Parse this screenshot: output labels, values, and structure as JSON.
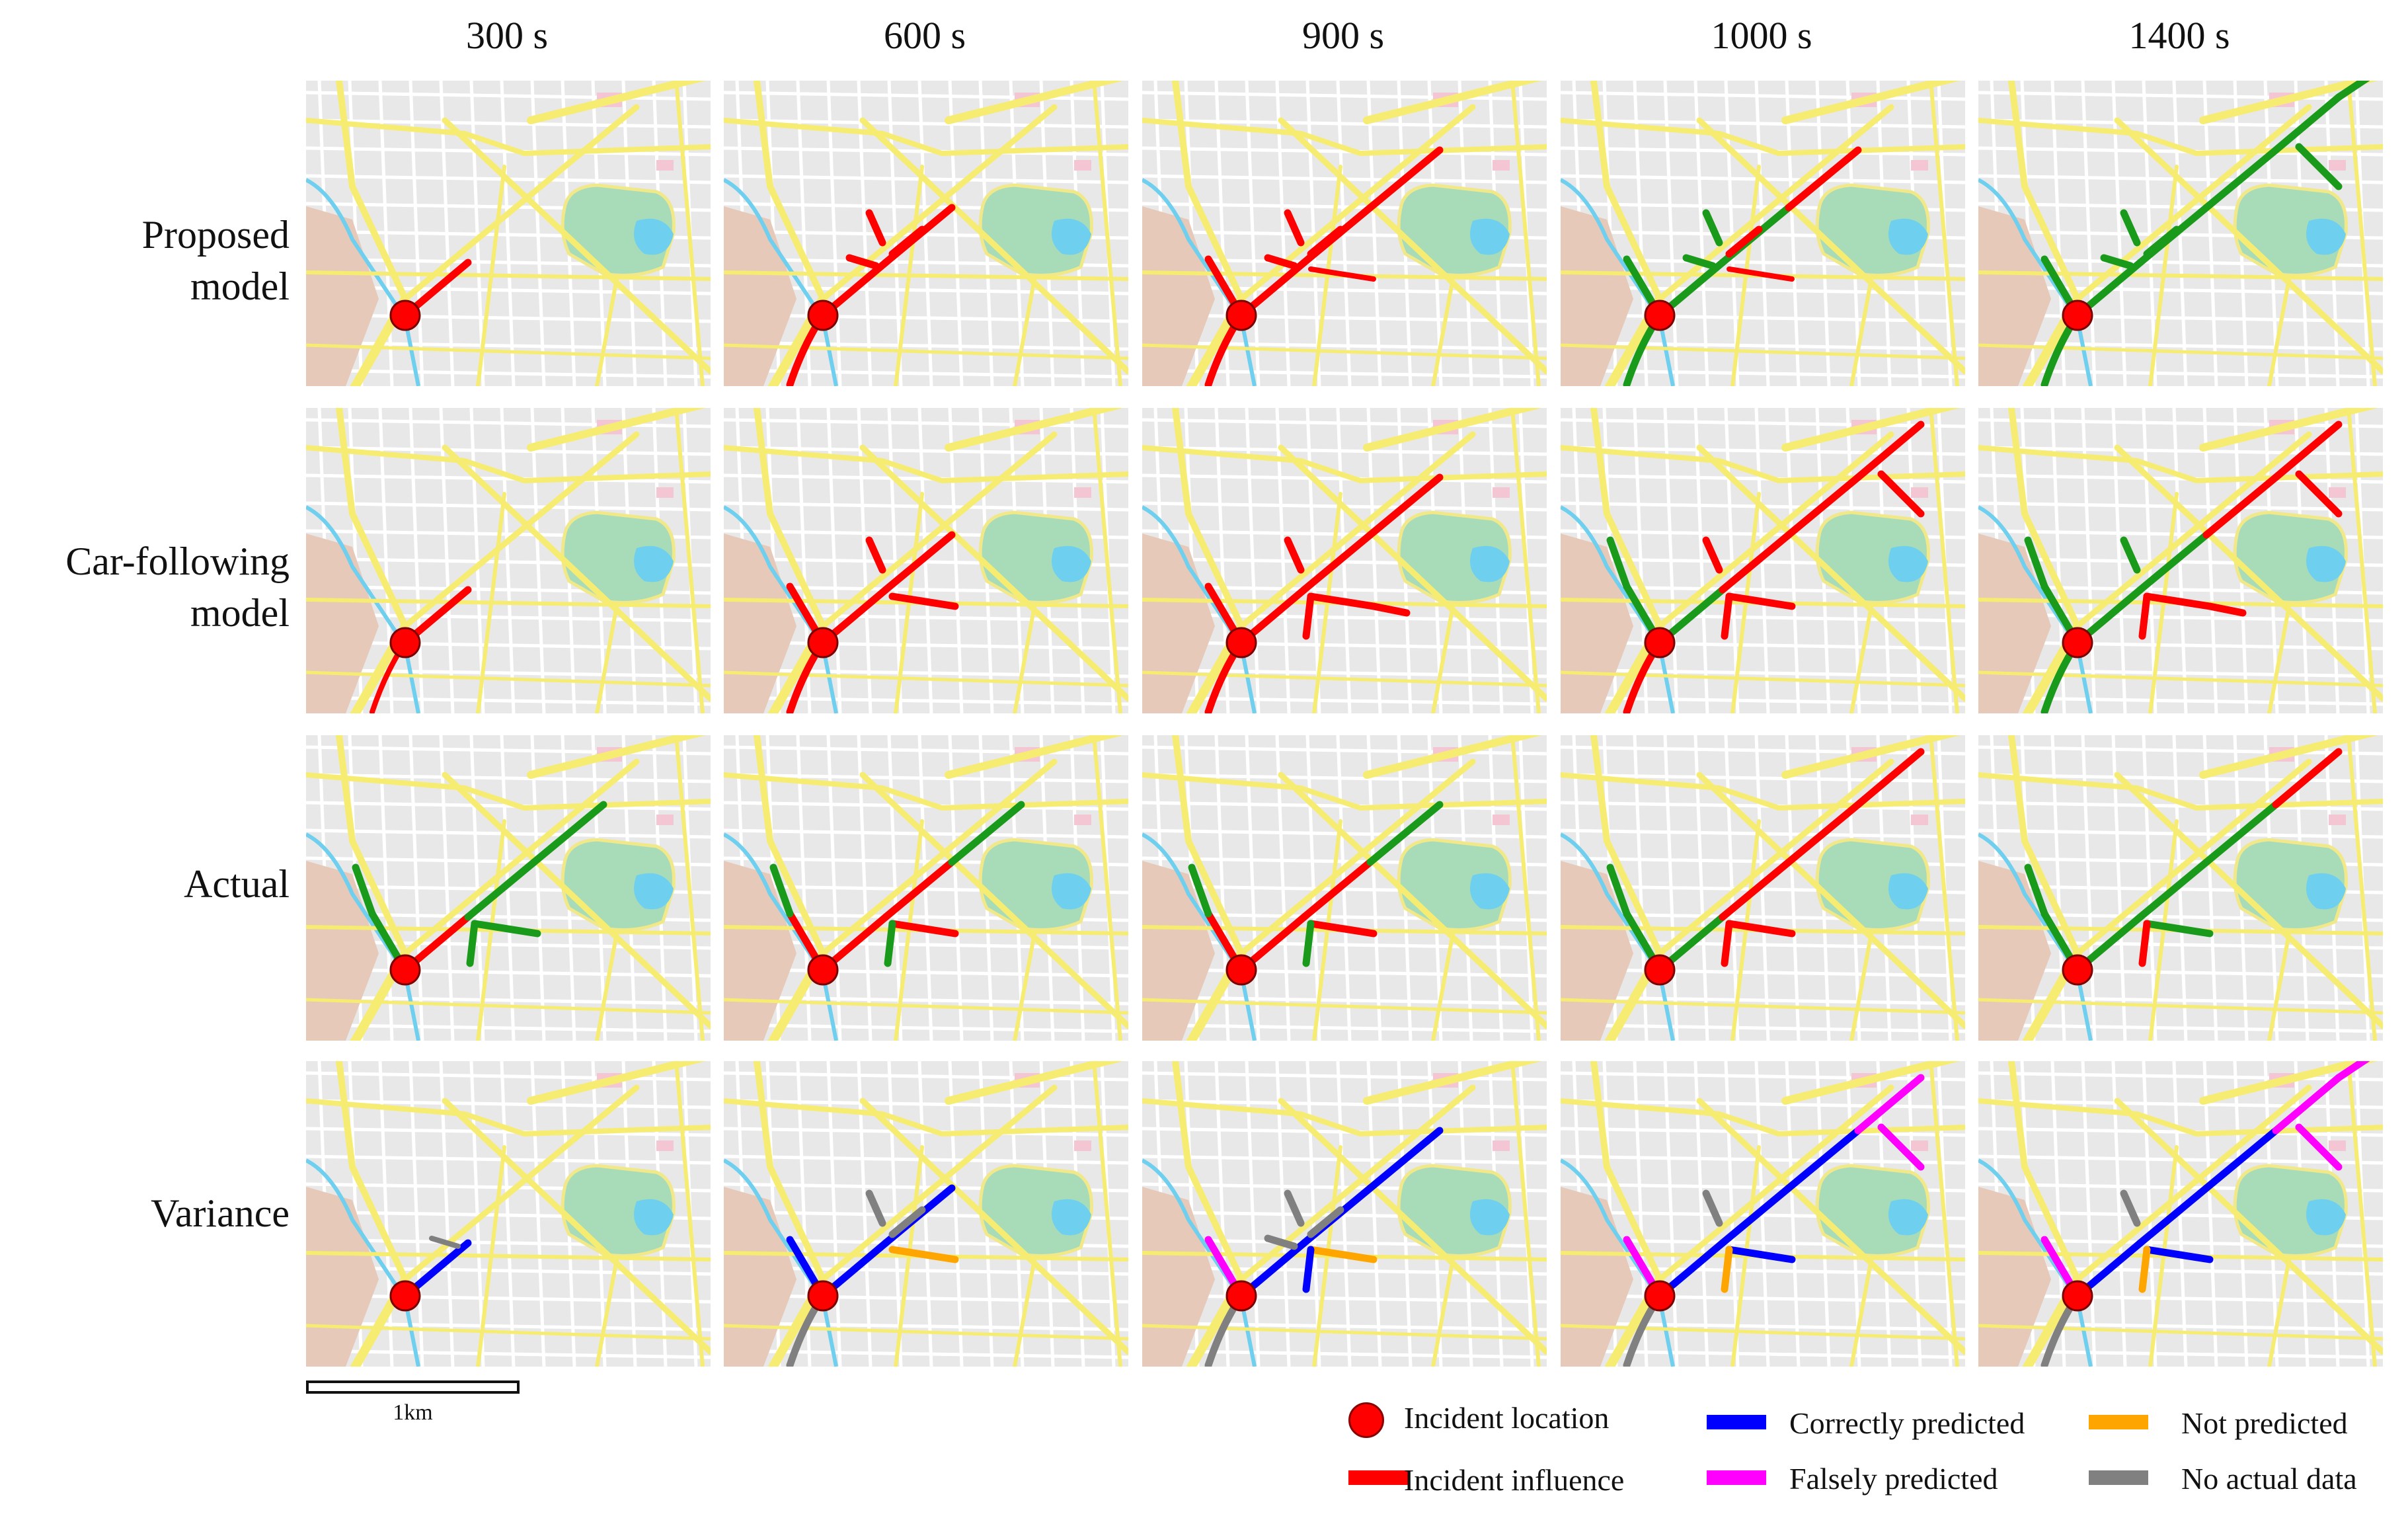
{
  "colors": {
    "incident_influence": "#ff0000",
    "normal": "#1a9a1a",
    "correctly_predicted": "#0000ff",
    "falsely_predicted": "#ff00ff",
    "not_predicted": "#ffa500",
    "no_actual_data": "#808080",
    "incident_location": "#ff0000",
    "major_road": "#f7ec72",
    "park": "#9ed9b0",
    "water": "#6fcfee"
  },
  "columns": [
    "300 s",
    "600 s",
    "900 s",
    "1000 s",
    "1400 s"
  ],
  "rows": [
    {
      "label": "Proposed model",
      "line1": "Proposed",
      "line2": "model"
    },
    {
      "label": "Car-following model",
      "line1": "Car-following",
      "line2": "model"
    },
    {
      "label": "Actual",
      "line1": "Actual",
      "line2": ""
    },
    {
      "label": "Variance",
      "line1": "Variance",
      "line2": ""
    }
  ],
  "scale_label": "1km",
  "legend": {
    "incident_location": "Incident location",
    "incident_influence": "Incident influence",
    "correctly_predicted": "Correctly predicted",
    "falsely_predicted": "Falsely predicted",
    "not_predicted": "Not predicted",
    "no_actual_data": "No actual data"
  },
  "icons": [
    "incident-location-marker-icon"
  ]
}
